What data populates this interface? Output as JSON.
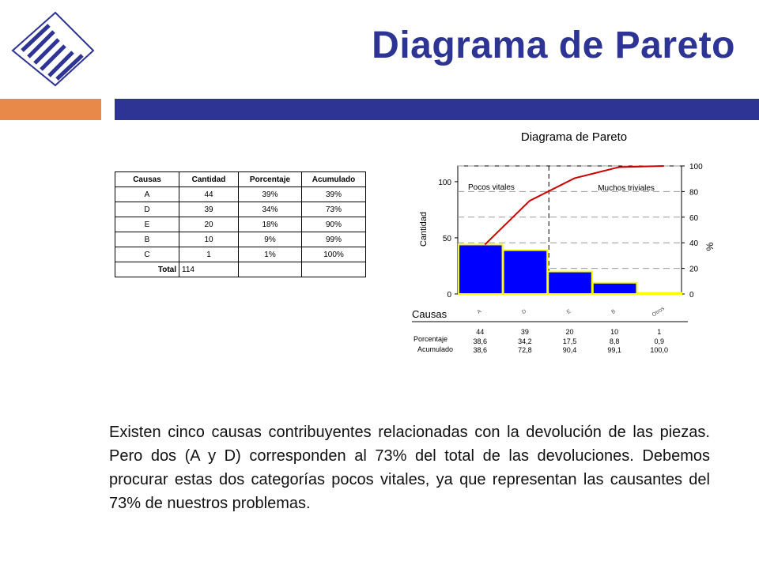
{
  "slide": {
    "title": "Diagrama de Pareto",
    "paragraph": "Existen cinco causas contribuyentes relacionadas con la devolución de las piezas.  Pero  dos (A y D) corresponden al 73% del total de las devoluciones. Debemos procurar estas dos categorías pocos vitales, ya que representan las causantes del 73% de nuestros problemas.",
    "colors": {
      "title": "#2d3494",
      "band_blue": "#2d3494",
      "band_orange": "#e8894a",
      "logo": "#2d3494"
    }
  },
  "table": {
    "headers": [
      "Causas",
      "Cantidad",
      "Porcentaje",
      "Acumulado"
    ],
    "rows": [
      [
        "A",
        "44",
        "39%",
        "39%"
      ],
      [
        "D",
        "39",
        "34%",
        "73%"
      ],
      [
        "E",
        "20",
        "18%",
        "90%"
      ],
      [
        "B",
        "10",
        "9%",
        "99%"
      ],
      [
        "C",
        "1",
        "1%",
        "100%"
      ]
    ],
    "total_label": "Total",
    "total_value": "114"
  },
  "chart_data": {
    "type": "bar",
    "title": "Diagrama de Pareto",
    "xlabel": "Causas",
    "ylabel": "Cantidad",
    "y2label": "%",
    "categories": [
      "A",
      "D",
      "E",
      "B",
      "Otros"
    ],
    "values": [
      44,
      39,
      20,
      10,
      1
    ],
    "cumulative_percent": [
      38.6,
      72.8,
      90.4,
      99.1,
      100.0
    ],
    "ylim": [
      0,
      114
    ],
    "y_ticks": [
      0,
      50,
      100
    ],
    "y2lim": [
      0,
      100
    ],
    "y2_ticks": [
      0,
      20,
      40,
      60,
      80,
      100
    ],
    "annotations": [
      "Pocos vitales",
      "Muchos triviales"
    ],
    "table_row_labels": [
      "Porcentaje",
      "Acumulado"
    ],
    "counts_row": [
      "44",
      "39",
      "20",
      "10",
      "1"
    ],
    "percent_row": [
      "38,6",
      "34,2",
      "17,5",
      "8,8",
      "0,9"
    ],
    "cumulative_row": [
      "38,6",
      "72,8",
      "90,4",
      "99,1",
      "100,0"
    ],
    "colors": {
      "bars": "#0000ff",
      "bar_outline": "#ffff00",
      "line": "#cc0000",
      "grid": "#999999"
    }
  }
}
